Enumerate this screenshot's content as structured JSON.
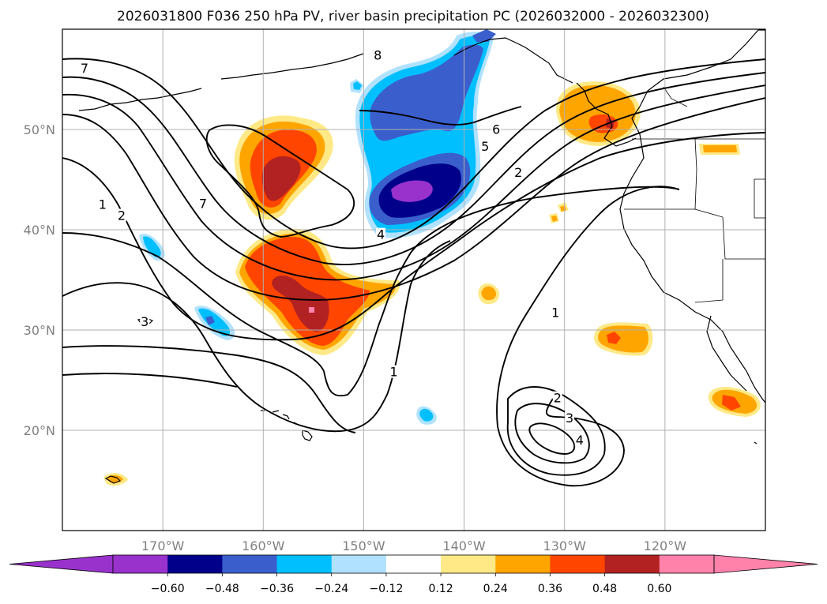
{
  "title": "2026031800 F036 250 hPa PV, river basin precipitation PC (2026032000 - 2026032300)",
  "map": {
    "projection": "PlateCarree",
    "lon_range": [
      -180,
      -110
    ],
    "lat_range": [
      10,
      60
    ],
    "gridlines": true,
    "lon_ticks": [
      {
        "value": -170,
        "label": "170°W"
      },
      {
        "value": -160,
        "label": "160°W"
      },
      {
        "value": -150,
        "label": "150°W"
      },
      {
        "value": -140,
        "label": "140°W"
      },
      {
        "value": -130,
        "label": "130°W"
      },
      {
        "value": -120,
        "label": "120°W"
      }
    ],
    "lat_ticks": [
      {
        "value": 20,
        "label": "20°N"
      },
      {
        "value": 30,
        "label": "30°N"
      },
      {
        "value": 40,
        "label": "40°N"
      },
      {
        "value": 50,
        "label": "50°N"
      }
    ]
  },
  "colorbar": {
    "extend": "both",
    "levels": [
      -0.72,
      -0.6,
      -0.48,
      -0.36,
      -0.24,
      -0.12,
      0.12,
      0.24,
      0.36,
      0.48,
      0.6,
      0.72
    ],
    "colors": [
      "#9932cc",
      "#00008b",
      "#3a5fcd",
      "#00bfff",
      "#b0e2ff",
      "#ffffff",
      "#ffe986",
      "#ffa500",
      "#ff4500",
      "#b22222",
      "#ff82ab"
    ],
    "under_color": "#9932cc",
    "over_color": "#ff82ab",
    "tick_labels": [
      "−0.60",
      "−0.48",
      "−0.36",
      "−0.24",
      "−0.12",
      "0.12",
      "0.24",
      "0.36",
      "0.48",
      "0.60"
    ]
  },
  "pv_contour_labels": [
    {
      "text": "7",
      "lon": -177.8,
      "lat": 56.0
    },
    {
      "text": "8",
      "lon": -148.6,
      "lat": 57.3
    },
    {
      "text": "1",
      "lon": -176.0,
      "lat": 42.4
    },
    {
      "text": "2",
      "lon": -174.1,
      "lat": 41.3
    },
    {
      "text": "7",
      "lon": -166.0,
      "lat": 42.5
    },
    {
      "text": "6",
      "lon": -136.8,
      "lat": 49.9
    },
    {
      "text": "5",
      "lon": -137.9,
      "lat": 48.2
    },
    {
      "text": "2",
      "lon": -134.6,
      "lat": 45.6
    },
    {
      "text": "4",
      "lon": -148.3,
      "lat": 39.4
    },
    {
      "text": "1",
      "lon": -130.9,
      "lat": 31.6
    },
    {
      "text": "1",
      "lon": -147.0,
      "lat": 25.7
    },
    {
      "text": "2",
      "lon": -130.7,
      "lat": 23.1
    },
    {
      "text": "3",
      "lon": -129.5,
      "lat": 21.1
    },
    {
      "text": "4",
      "lon": -128.5,
      "lat": 18.9
    },
    {
      "text": "3",
      "lon": -171.8,
      "lat": 30.7
    }
  ],
  "precip_pc_regions": [
    {
      "category": "positive",
      "location": "north Pacific near 158°W 45°N",
      "max_level": 0.48
    },
    {
      "category": "positive",
      "location": "subtropical Pacific near 155°W 32°N",
      "max_level": 0.6
    },
    {
      "category": "negative",
      "location": "north Pacific near 146°W 43°N",
      "max_level": -0.72
    },
    {
      "category": "negative",
      "location": "Gulf of Alaska near 147°W 53°N",
      "max_level": -0.48
    },
    {
      "category": "positive",
      "location": "Pacific Northwest coast near 125°W 51°N",
      "max_level": 0.48
    },
    {
      "category": "positive",
      "location": "near 126°W 29°N",
      "max_level": 0.36
    },
    {
      "category": "positive",
      "location": "near 115°W 23°N",
      "max_level": 0.48
    }
  ]
}
